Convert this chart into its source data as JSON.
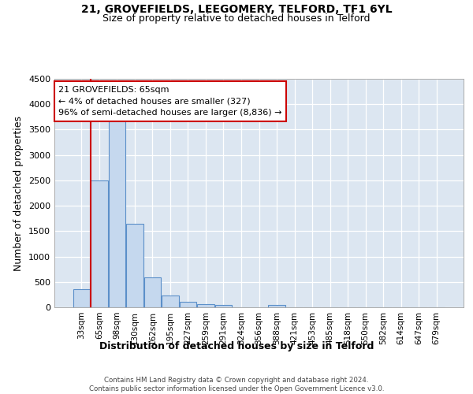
{
  "title": "21, GROVEFIELDS, LEEGOMERY, TELFORD, TF1 6YL",
  "subtitle": "Size of property relative to detached houses in Telford",
  "xlabel": "Distribution of detached houses by size in Telford",
  "ylabel": "Number of detached properties",
  "categories": [
    "33sqm",
    "65sqm",
    "98sqm",
    "130sqm",
    "162sqm",
    "195sqm",
    "227sqm",
    "259sqm",
    "291sqm",
    "324sqm",
    "356sqm",
    "388sqm",
    "421sqm",
    "453sqm",
    "485sqm",
    "518sqm",
    "550sqm",
    "582sqm",
    "614sqm",
    "647sqm",
    "679sqm"
  ],
  "values": [
    360,
    2500,
    3750,
    1640,
    590,
    230,
    105,
    60,
    40,
    0,
    0,
    50,
    0,
    0,
    0,
    0,
    0,
    0,
    0,
    0,
    0
  ],
  "bar_color": "#c5d8ee",
  "bar_edge_color": "#5b8fc9",
  "highlight_bar_index": 1,
  "highlight_line_color": "#cc0000",
  "annotation_text": "21 GROVEFIELDS: 65sqm\n← 4% of detached houses are smaller (327)\n96% of semi-detached houses are larger (8,836) →",
  "annotation_box_color": "#ffffff",
  "annotation_box_edge": "#cc0000",
  "ylim": [
    0,
    4500
  ],
  "yticks": [
    0,
    500,
    1000,
    1500,
    2000,
    2500,
    3000,
    3500,
    4000,
    4500
  ],
  "footer_text": "Contains HM Land Registry data © Crown copyright and database right 2024.\nContains public sector information licensed under the Open Government Licence v3.0.",
  "plot_background": "#dce6f1",
  "title_fontsize": 10,
  "subtitle_fontsize": 9,
  "axis_label_fontsize": 9
}
